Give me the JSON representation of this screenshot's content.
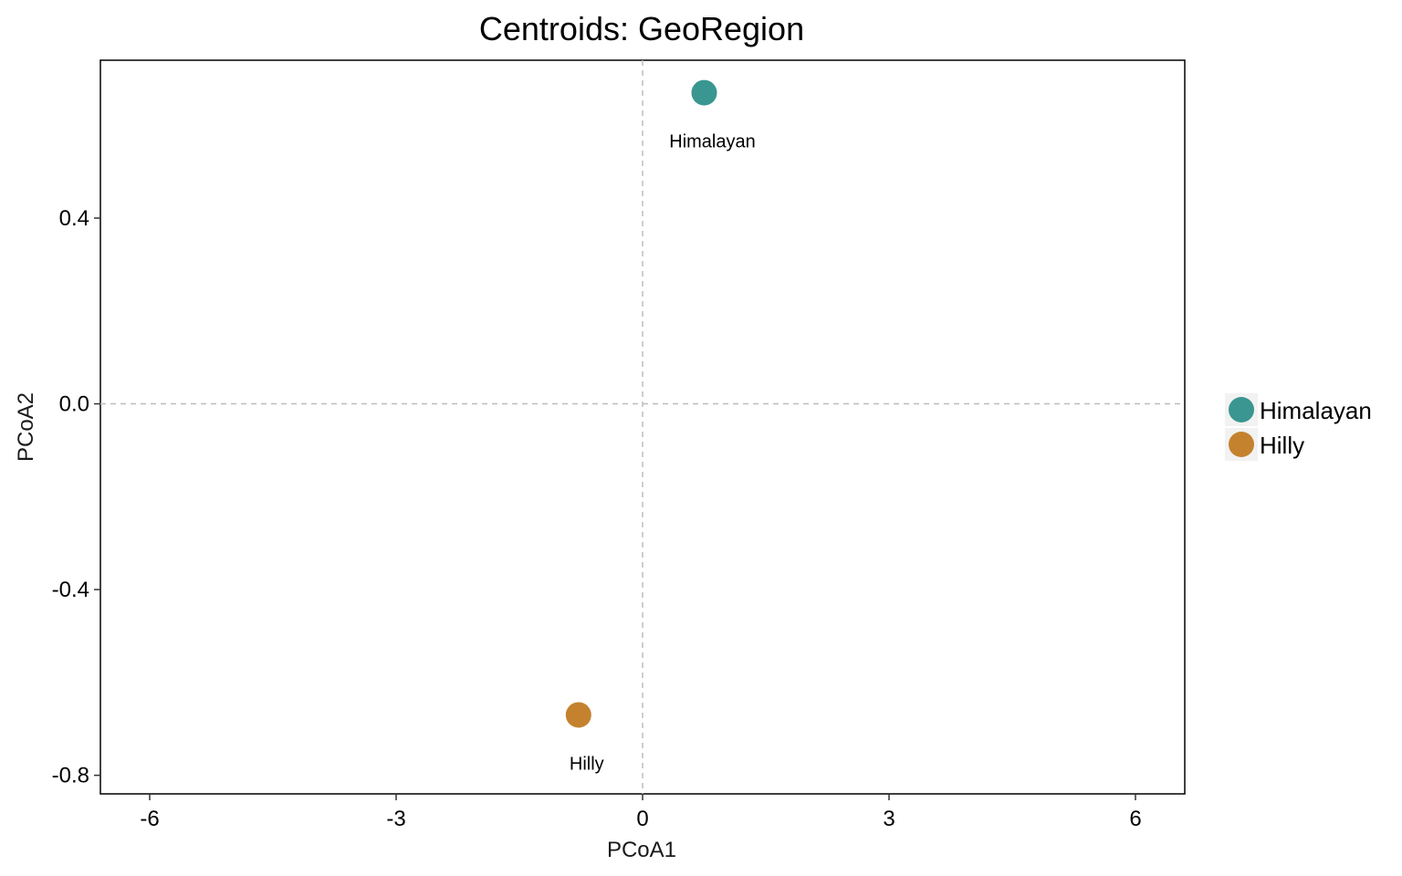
{
  "chart_data": {
    "type": "scatter",
    "title": "Centroids: GeoRegion",
    "xlabel": "PCoA1",
    "ylabel": "PCoA2",
    "xlim": [
      -6.6,
      6.6
    ],
    "ylim": [
      -0.84,
      0.74
    ],
    "x_ticks": [
      -6,
      -3,
      0,
      3,
      6
    ],
    "x_tick_labels": [
      "-6",
      "-3",
      "0",
      "3",
      "6"
    ],
    "y_ticks": [
      0.4,
      0.0,
      -0.4,
      -0.8
    ],
    "y_tick_labels": [
      "0.4",
      "0.0",
      "-0.4",
      "-0.8"
    ],
    "reference_lines": {
      "x": 0,
      "y": 0,
      "style": "dashed",
      "color": "#bdbdbd"
    },
    "grid": false,
    "legend_position": "right",
    "series": [
      {
        "name": "Himalayan",
        "color": "#3a9690",
        "x": 0.75,
        "y": 0.67,
        "label": "Himalayan"
      },
      {
        "name": "Hilly",
        "color": "#c4822f",
        "x": -0.78,
        "y": -0.67,
        "label": "Hilly"
      }
    ]
  }
}
